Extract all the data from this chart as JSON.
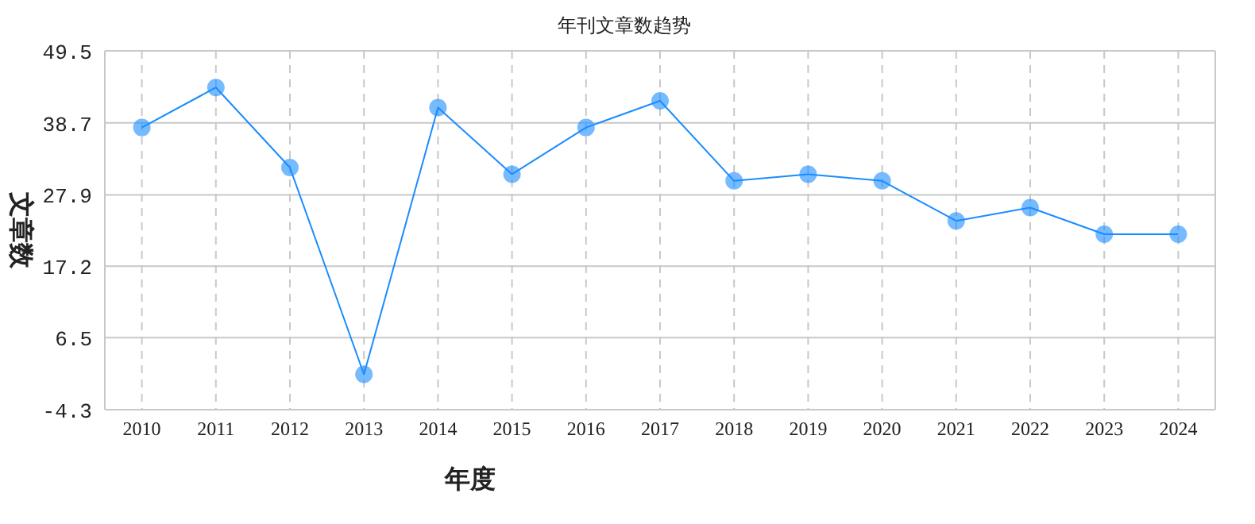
{
  "chart_data": {
    "type": "line",
    "title": "年刊文章数趋势",
    "xlabel": "年度",
    "ylabel": "文章数",
    "categories": [
      "2010",
      "2011",
      "2012",
      "2013",
      "2014",
      "2015",
      "2016",
      "2017",
      "2018",
      "2019",
      "2020",
      "2021",
      "2022",
      "2023",
      "2024"
    ],
    "series": [
      {
        "color": "#1a8cff",
        "values": [
          38,
          44,
          32,
          1,
          41,
          31,
          38,
          42,
          30,
          31,
          30,
          24,
          26,
          22,
          22
        ]
      }
    ],
    "ylim": [
      -4.3,
      49.5
    ],
    "yticks": [
      -4.3,
      6.5,
      17.2,
      27.9,
      38.7,
      49.5
    ],
    "grid": true,
    "marker": "circle",
    "line_style": "solid"
  }
}
